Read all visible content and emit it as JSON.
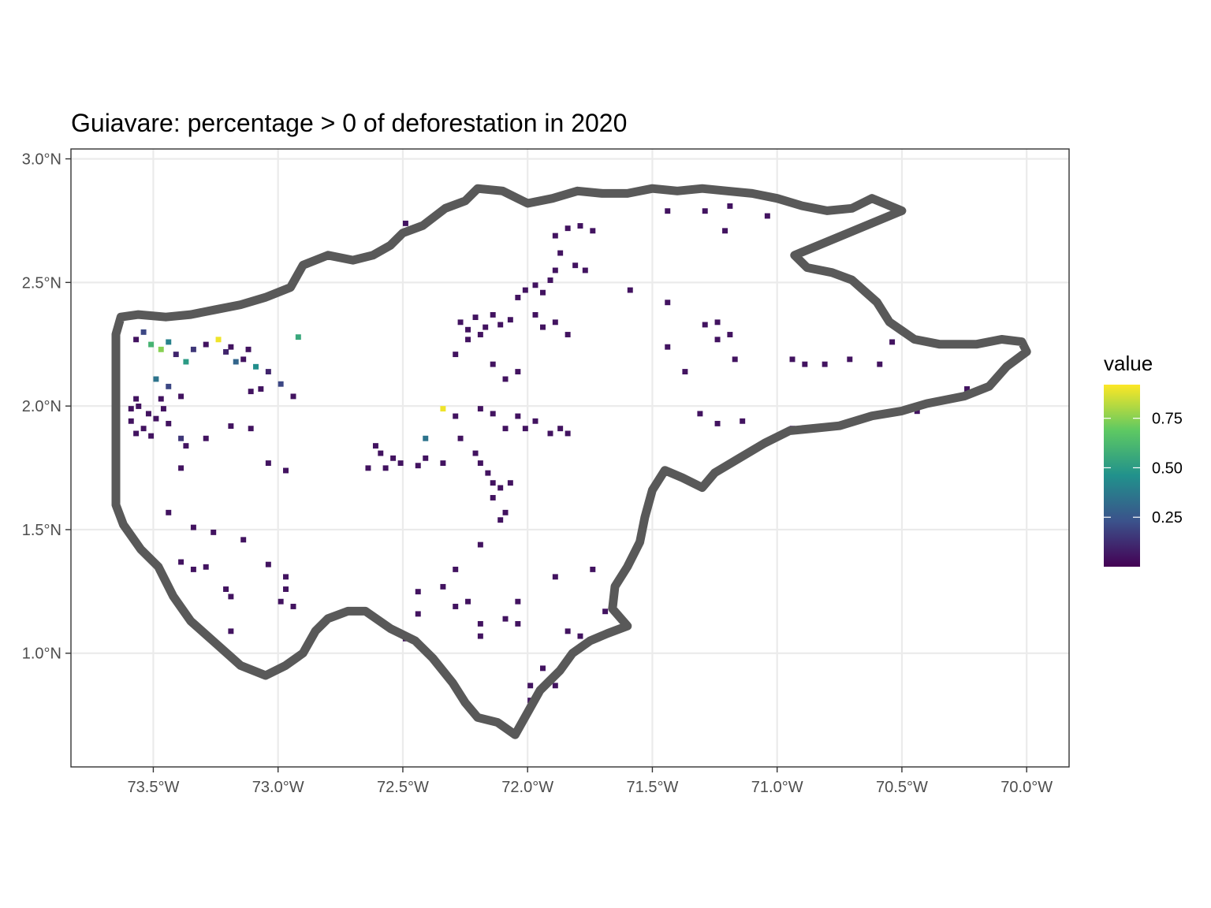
{
  "chart_data": {
    "type": "map",
    "title": "Guiavare: percentage > 0 of deforestation in 2020",
    "xlim": [
      -73.83,
      -69.83
    ],
    "ylim": [
      0.54,
      3.04
    ],
    "x_ticks": [
      {
        "value": -73.5,
        "label": "73.5°W"
      },
      {
        "value": -73.0,
        "label": "73.0°W"
      },
      {
        "value": -72.5,
        "label": "72.5°W"
      },
      {
        "value": -72.0,
        "label": "72.0°W"
      },
      {
        "value": -71.5,
        "label": "71.5°W"
      },
      {
        "value": -71.0,
        "label": "71.0°W"
      },
      {
        "value": -70.5,
        "label": "70.5°W"
      },
      {
        "value": -70.0,
        "label": "70.0°W"
      }
    ],
    "y_ticks": [
      {
        "value": 3.0,
        "label": "3.0°N"
      },
      {
        "value": 2.5,
        "label": "2.5°N"
      },
      {
        "value": 2.0,
        "label": "2.0°N"
      },
      {
        "value": 1.5,
        "label": "1.5°N"
      },
      {
        "value": 1.0,
        "label": "1.0°N"
      }
    ],
    "grid": true,
    "legend": {
      "title": "value",
      "position": "right",
      "range": [
        0.0,
        0.92
      ],
      "ticks": [
        {
          "value": 0.25,
          "label": "0.25"
        },
        {
          "value": 0.5,
          "label": "0.50"
        },
        {
          "value": 0.75,
          "label": "0.75"
        }
      ],
      "colors": [
        "#440154",
        "#3b528b",
        "#21918c",
        "#5ec962",
        "#fde725"
      ]
    },
    "boundary_color": "#595959",
    "boundary": [
      [
        -73.65,
        2.29
      ],
      [
        -73.63,
        2.36
      ],
      [
        -73.56,
        2.37
      ],
      [
        -73.45,
        2.36
      ],
      [
        -73.35,
        2.37
      ],
      [
        -73.25,
        2.39
      ],
      [
        -73.15,
        2.41
      ],
      [
        -73.05,
        2.44
      ],
      [
        -72.95,
        2.48
      ],
      [
        -72.9,
        2.57
      ],
      [
        -72.8,
        2.61
      ],
      [
        -72.7,
        2.59
      ],
      [
        -72.62,
        2.61
      ],
      [
        -72.55,
        2.65
      ],
      [
        -72.5,
        2.7
      ],
      [
        -72.42,
        2.73
      ],
      [
        -72.33,
        2.8
      ],
      [
        -72.25,
        2.83
      ],
      [
        -72.2,
        2.88
      ],
      [
        -72.1,
        2.87
      ],
      [
        -72.0,
        2.82
      ],
      [
        -71.9,
        2.84
      ],
      [
        -71.8,
        2.87
      ],
      [
        -71.7,
        2.86
      ],
      [
        -71.6,
        2.86
      ],
      [
        -71.5,
        2.88
      ],
      [
        -71.4,
        2.87
      ],
      [
        -71.3,
        2.88
      ],
      [
        -71.2,
        2.87
      ],
      [
        -71.1,
        2.86
      ],
      [
        -71.0,
        2.84
      ],
      [
        -70.9,
        2.81
      ],
      [
        -70.8,
        2.79
      ],
      [
        -70.7,
        2.8
      ],
      [
        -70.62,
        2.84
      ],
      [
        -70.5,
        2.79
      ],
      [
        -70.93,
        2.61
      ],
      [
        -70.88,
        2.56
      ],
      [
        -70.78,
        2.54
      ],
      [
        -70.7,
        2.51
      ],
      [
        -70.6,
        2.42
      ],
      [
        -70.55,
        2.34
      ],
      [
        -70.45,
        2.27
      ],
      [
        -70.35,
        2.25
      ],
      [
        -70.2,
        2.25
      ],
      [
        -70.1,
        2.27
      ],
      [
        -70.02,
        2.26
      ],
      [
        -70.0,
        2.22
      ],
      [
        -70.08,
        2.16
      ],
      [
        -70.15,
        2.08
      ],
      [
        -70.25,
        2.04
      ],
      [
        -70.4,
        2.01
      ],
      [
        -70.5,
        1.98
      ],
      [
        -70.62,
        1.96
      ],
      [
        -70.75,
        1.92
      ],
      [
        -70.85,
        1.91
      ],
      [
        -70.95,
        1.9
      ],
      [
        -71.05,
        1.85
      ],
      [
        -71.15,
        1.79
      ],
      [
        -71.25,
        1.73
      ],
      [
        -71.3,
        1.67
      ],
      [
        -71.38,
        1.71
      ],
      [
        -71.45,
        1.74
      ],
      [
        -71.5,
        1.66
      ],
      [
        -71.53,
        1.55
      ],
      [
        -71.55,
        1.45
      ],
      [
        -71.6,
        1.35
      ],
      [
        -71.65,
        1.27
      ],
      [
        -71.66,
        1.18
      ],
      [
        -71.6,
        1.11
      ],
      [
        -71.68,
        1.08
      ],
      [
        -71.75,
        1.05
      ],
      [
        -71.82,
        1.0
      ],
      [
        -71.87,
        0.93
      ],
      [
        -71.95,
        0.85
      ],
      [
        -72.05,
        0.67
      ],
      [
        -72.12,
        0.72
      ],
      [
        -72.2,
        0.74
      ],
      [
        -72.25,
        0.8
      ],
      [
        -72.3,
        0.88
      ],
      [
        -72.38,
        0.98
      ],
      [
        -72.45,
        1.05
      ],
      [
        -72.55,
        1.1
      ],
      [
        -72.65,
        1.17
      ],
      [
        -72.72,
        1.17
      ],
      [
        -72.8,
        1.14
      ],
      [
        -72.85,
        1.09
      ],
      [
        -72.9,
        1.0
      ],
      [
        -72.97,
        0.95
      ],
      [
        -73.05,
        0.91
      ],
      [
        -73.15,
        0.95
      ],
      [
        -73.25,
        1.04
      ],
      [
        -73.35,
        1.13
      ],
      [
        -73.42,
        1.23
      ],
      [
        -73.48,
        1.35
      ],
      [
        -73.55,
        1.42
      ],
      [
        -73.62,
        1.52
      ],
      [
        -73.65,
        1.6
      ],
      [
        -73.65,
        1.8
      ],
      [
        -73.65,
        2.29
      ]
    ],
    "pixels": [
      [
        -73.58,
        2.28,
        0.05
      ],
      [
        -73.55,
        2.31,
        0.2
      ],
      [
        -73.52,
        2.26,
        0.6
      ],
      [
        -73.48,
        2.24,
        0.75
      ],
      [
        -73.45,
        2.27,
        0.4
      ],
      [
        -73.42,
        2.22,
        0.1
      ],
      [
        -73.38,
        2.19,
        0.5
      ],
      [
        -73.35,
        2.24,
        0.15
      ],
      [
        -73.3,
        2.26,
        0.05
      ],
      [
        -73.25,
        2.28,
        0.9
      ],
      [
        -73.22,
        2.23,
        0.1
      ],
      [
        -73.2,
        2.25,
        0.05
      ],
      [
        -73.18,
        2.19,
        0.3
      ],
      [
        -73.15,
        2.2,
        0.05
      ],
      [
        -73.13,
        2.24,
        0.05
      ],
      [
        -73.1,
        2.17,
        0.45
      ],
      [
        -73.05,
        2.15,
        0.1
      ],
      [
        -73.0,
        2.1,
        0.2
      ],
      [
        -72.95,
        2.05,
        0.05
      ],
      [
        -72.93,
        2.29,
        0.55
      ],
      [
        -73.08,
        2.08,
        0.05
      ],
      [
        -73.12,
        2.07,
        0.05
      ],
      [
        -73.5,
        2.12,
        0.35
      ],
      [
        -73.45,
        2.09,
        0.2
      ],
      [
        -73.4,
        2.05,
        0.05
      ],
      [
        -73.57,
        2.01,
        0.05
      ],
      [
        -73.53,
        1.98,
        0.05
      ],
      [
        -73.5,
        1.96,
        0.05
      ],
      [
        -73.47,
        2.0,
        0.05
      ],
      [
        -73.45,
        1.94,
        0.05
      ],
      [
        -73.6,
        1.95,
        0.05
      ],
      [
        -73.58,
        1.9,
        0.05
      ],
      [
        -73.55,
        1.92,
        0.05
      ],
      [
        -73.52,
        1.89,
        0.05
      ],
      [
        -73.6,
        2.0,
        0.05
      ],
      [
        -73.58,
        2.04,
        0.05
      ],
      [
        -73.48,
        2.04,
        0.05
      ],
      [
        -73.4,
        1.88,
        0.15
      ],
      [
        -73.38,
        1.85,
        0.05
      ],
      [
        -73.3,
        1.88,
        0.05
      ],
      [
        -73.2,
        1.93,
        0.05
      ],
      [
        -73.12,
        1.92,
        0.05
      ],
      [
        -73.05,
        1.78,
        0.05
      ],
      [
        -72.98,
        1.75,
        0.05
      ],
      [
        -73.4,
        1.76,
        0.05
      ],
      [
        -73.45,
        1.58,
        0.05
      ],
      [
        -73.35,
        1.52,
        0.05
      ],
      [
        -73.27,
        1.5,
        0.05
      ],
      [
        -73.15,
        1.47,
        0.05
      ],
      [
        -73.4,
        1.38,
        0.05
      ],
      [
        -73.35,
        1.35,
        0.05
      ],
      [
        -73.3,
        1.36,
        0.05
      ],
      [
        -73.22,
        1.27,
        0.05
      ],
      [
        -73.2,
        1.24,
        0.05
      ],
      [
        -73.05,
        1.37,
        0.05
      ],
      [
        -72.98,
        1.32,
        0.05
      ],
      [
        -72.98,
        1.27,
        0.05
      ],
      [
        -73.0,
        1.22,
        0.05
      ],
      [
        -72.95,
        1.2,
        0.05
      ],
      [
        -73.2,
        1.1,
        0.05
      ],
      [
        -72.5,
        2.75,
        0.05
      ],
      [
        -72.28,
        2.35,
        0.05
      ],
      [
        -72.25,
        2.32,
        0.05
      ],
      [
        -72.22,
        2.37,
        0.05
      ],
      [
        -72.18,
        2.33,
        0.05
      ],
      [
        -72.15,
        2.38,
        0.05
      ],
      [
        -72.12,
        2.34,
        0.05
      ],
      [
        -72.08,
        2.36,
        0.05
      ],
      [
        -72.2,
        2.3,
        0.05
      ],
      [
        -72.25,
        2.28,
        0.05
      ],
      [
        -72.05,
        2.45,
        0.05
      ],
      [
        -72.02,
        2.48,
        0.05
      ],
      [
        -71.98,
        2.5,
        0.05
      ],
      [
        -71.95,
        2.47,
        0.05
      ],
      [
        -71.92,
        2.52,
        0.05
      ],
      [
        -71.9,
        2.56,
        0.05
      ],
      [
        -71.88,
        2.63,
        0.05
      ],
      [
        -71.9,
        2.7,
        0.05
      ],
      [
        -71.85,
        2.73,
        0.05
      ],
      [
        -71.8,
        2.74,
        0.05
      ],
      [
        -71.75,
        2.72,
        0.05
      ],
      [
        -71.82,
        2.58,
        0.05
      ],
      [
        -71.78,
        2.56,
        0.05
      ],
      [
        -71.98,
        2.38,
        0.05
      ],
      [
        -71.95,
        2.33,
        0.05
      ],
      [
        -71.9,
        2.35,
        0.05
      ],
      [
        -71.85,
        2.3,
        0.05
      ],
      [
        -71.6,
        2.48,
        0.05
      ],
      [
        -71.45,
        2.43,
        0.05
      ],
      [
        -71.3,
        2.34,
        0.05
      ],
      [
        -71.25,
        2.35,
        0.05
      ],
      [
        -71.45,
        2.25,
        0.05
      ],
      [
        -71.38,
        2.15,
        0.05
      ],
      [
        -71.25,
        2.28,
        0.05
      ],
      [
        -71.18,
        2.2,
        0.05
      ],
      [
        -71.2,
        2.3,
        0.05
      ],
      [
        -71.22,
        2.72,
        0.05
      ],
      [
        -71.3,
        2.8,
        0.05
      ],
      [
        -71.45,
        2.8,
        0.05
      ],
      [
        -71.05,
        2.78,
        0.05
      ],
      [
        -71.2,
        2.82,
        0.05
      ],
      [
        -70.95,
        2.2,
        0.05
      ],
      [
        -70.9,
        2.18,
        0.05
      ],
      [
        -70.82,
        2.18,
        0.05
      ],
      [
        -70.72,
        2.2,
        0.05
      ],
      [
        -70.6,
        2.18,
        0.05
      ],
      [
        -70.55,
        2.27,
        0.05
      ],
      [
        -70.25,
        2.08,
        0.05
      ],
      [
        -70.45,
        1.99,
        0.05
      ],
      [
        -70.95,
        1.92,
        0.05
      ],
      [
        -71.15,
        1.95,
        0.05
      ],
      [
        -71.32,
        1.98,
        0.05
      ],
      [
        -71.25,
        1.94,
        0.05
      ],
      [
        -72.3,
        2.22,
        0.05
      ],
      [
        -72.15,
        2.18,
        0.05
      ],
      [
        -72.1,
        2.12,
        0.05
      ],
      [
        -72.05,
        2.15,
        0.05
      ],
      [
        -72.2,
        2.0,
        0.05
      ],
      [
        -72.15,
        1.98,
        0.05
      ],
      [
        -72.1,
        1.92,
        0.05
      ],
      [
        -72.05,
        1.97,
        0.05
      ],
      [
        -72.02,
        1.92,
        0.05
      ],
      [
        -71.98,
        1.95,
        0.05
      ],
      [
        -71.92,
        1.9,
        0.05
      ],
      [
        -71.88,
        1.92,
        0.05
      ],
      [
        -71.85,
        1.9,
        0.05
      ],
      [
        -72.3,
        1.97,
        0.05
      ],
      [
        -72.35,
        2.0,
        0.9
      ],
      [
        -72.28,
        1.88,
        0.05
      ],
      [
        -72.22,
        1.82,
        0.05
      ],
      [
        -72.2,
        1.78,
        0.05
      ],
      [
        -72.17,
        1.74,
        0.05
      ],
      [
        -72.15,
        1.7,
        0.05
      ],
      [
        -72.12,
        1.68,
        0.05
      ],
      [
        -72.15,
        1.64,
        0.05
      ],
      [
        -72.08,
        1.7,
        0.05
      ],
      [
        -72.1,
        1.58,
        0.05
      ],
      [
        -72.35,
        1.78,
        0.05
      ],
      [
        -72.42,
        1.8,
        0.05
      ],
      [
        -72.45,
        1.77,
        0.05
      ],
      [
        -72.52,
        1.78,
        0.05
      ],
      [
        -72.55,
        1.8,
        0.05
      ],
      [
        -72.58,
        1.76,
        0.05
      ],
      [
        -72.6,
        1.82,
        0.05
      ],
      [
        -72.62,
        1.85,
        0.05
      ],
      [
        -72.42,
        1.88,
        0.35
      ],
      [
        -72.65,
        1.76,
        0.05
      ],
      [
        -72.12,
        1.55,
        0.05
      ],
      [
        -72.2,
        1.45,
        0.05
      ],
      [
        -71.9,
        1.32,
        0.05
      ],
      [
        -71.75,
        1.35,
        0.05
      ],
      [
        -72.05,
        1.22,
        0.05
      ],
      [
        -72.3,
        1.35,
        0.05
      ],
      [
        -72.35,
        1.28,
        0.05
      ],
      [
        -72.45,
        1.26,
        0.05
      ],
      [
        -72.45,
        1.17,
        0.05
      ],
      [
        -72.3,
        1.2,
        0.05
      ],
      [
        -72.25,
        1.22,
        0.05
      ],
      [
        -72.1,
        1.15,
        0.05
      ],
      [
        -72.2,
        1.13,
        0.05
      ],
      [
        -72.05,
        1.13,
        0.05
      ],
      [
        -72.2,
        1.08,
        0.05
      ],
      [
        -71.7,
        1.18,
        0.05
      ],
      [
        -71.85,
        1.1,
        0.05
      ],
      [
        -71.95,
        0.95,
        0.05
      ],
      [
        -72.0,
        0.88,
        0.05
      ],
      [
        -72.0,
        0.82,
        0.05
      ],
      [
        -71.9,
        0.88,
        0.05
      ],
      [
        -72.5,
        1.07,
        0.05
      ],
      [
        -71.8,
        1.08,
        0.05
      ]
    ]
  }
}
